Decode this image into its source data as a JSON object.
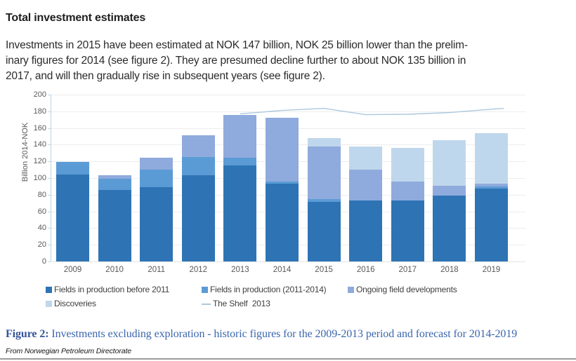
{
  "header": {
    "title": "Total investment estimates",
    "body_lines": [
      "Investments in 2015 have been estimated at NOK 147 billion, NOK 25 billion lower than the prelim-",
      "inary figures for 2014 (see figure 2). They are presumed decline further to about NOK 135 billion in",
      "2017, and will then gradually rise in subsequent years (see figure 2)."
    ]
  },
  "chart_data": {
    "type": "bar",
    "stacked": true,
    "title": "",
    "xlabel": "",
    "ylabel": "Billion 2014-NOK",
    "ylim": [
      0,
      200
    ],
    "ytick_step": 20,
    "grid": true,
    "legend_position": "bottom",
    "categories": [
      "2009",
      "2010",
      "2011",
      "2012",
      "2013",
      "2014",
      "2015",
      "2016",
      "2017",
      "2018",
      "2019"
    ],
    "series": [
      {
        "name": "Fields in production before 2011",
        "color": "#2E74B5",
        "values": [
          104,
          86,
          89,
          103,
          115,
          93,
          71,
          73,
          73,
          79,
          87
        ]
      },
      {
        "name": "Fields in production (2011-2014)",
        "color": "#5B9BD5",
        "values": [
          15,
          13,
          21,
          22,
          9,
          3,
          4,
          0,
          0,
          0,
          3
        ]
      },
      {
        "name": "Ongoing field developments",
        "color": "#8FAADC",
        "values": [
          0,
          4,
          14,
          26,
          52,
          76,
          63,
          37,
          23,
          12,
          3
        ]
      },
      {
        "name": "Discoveries",
        "color": "#BFD7EC",
        "values": [
          0,
          0,
          0,
          0,
          0,
          0,
          9.5,
          28,
          40,
          54,
          61
        ]
      }
    ],
    "totals": [
      119,
      103,
      124,
      151,
      176,
      172,
      147.5,
      138,
      136,
      145,
      154
    ],
    "line_series": {
      "name": "The Shelf  2013",
      "color": "#ABC8DE",
      "x": [
        2013,
        2014,
        2015,
        2016,
        2017,
        2018,
        2019,
        2019.3
      ],
      "values": [
        177,
        181,
        183.5,
        176,
        176.5,
        178.5,
        182.5,
        183.5
      ]
    }
  },
  "caption": {
    "label": "Figure 2:",
    "text": " Investments excluding exploration - historic figures for the 2009-2013 period and forecast for 2014-2019"
  },
  "source": "From Norwegian Petroleum Directorate"
}
